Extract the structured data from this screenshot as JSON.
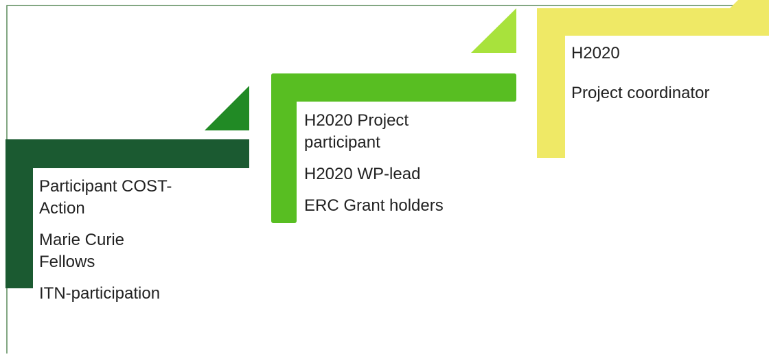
{
  "steps": [
    {
      "items": [
        "Participant COST-Action",
        "Marie Curie Fellows",
        "ITN-participation"
      ]
    },
    {
      "items": [
        "H2020 Project participant",
        "H2020 WP-lead",
        "ERC Grant holders"
      ]
    },
    {
      "items": [
        "H2020",
        "Project coordinator"
      ]
    }
  ]
}
